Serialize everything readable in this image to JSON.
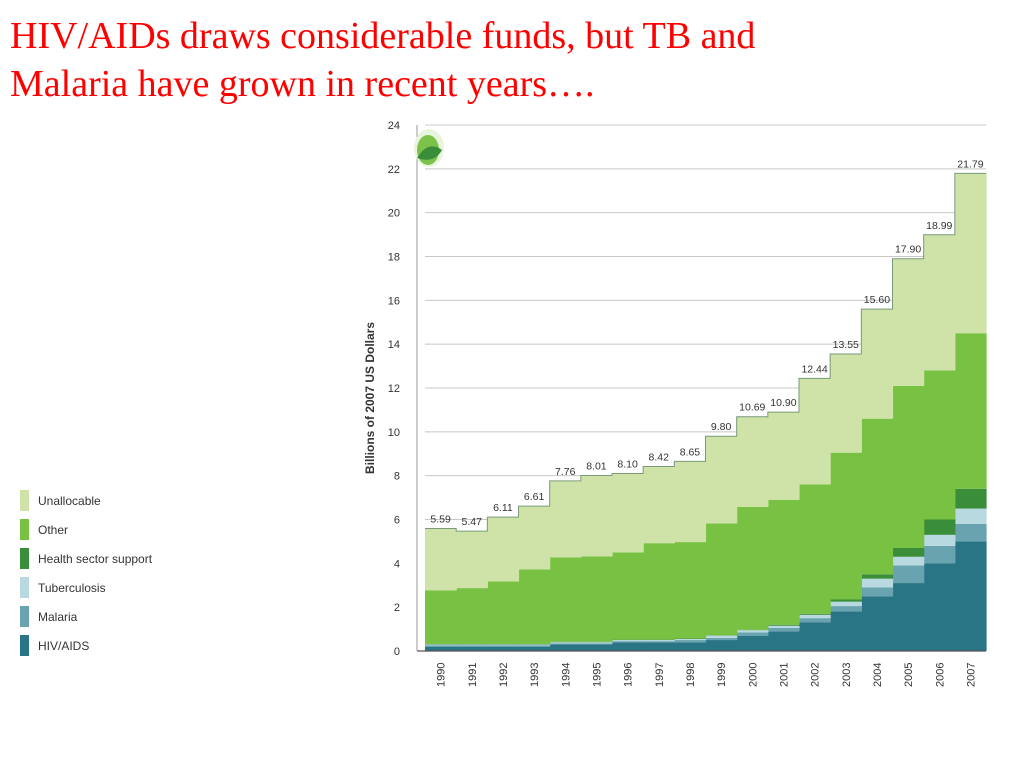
{
  "slide": {
    "title_line1": "HIV/AIDs draws considerable funds, but TB and",
    "title_line2": "Malaria have grown in recent years…."
  },
  "logo": {
    "icon": "leaf-logo-icon",
    "color": "#6ab04c"
  },
  "chart_data": {
    "type": "area",
    "stacked": true,
    "step": true,
    "categories": [
      "1990",
      "1991",
      "1992",
      "1993",
      "1994",
      "1995",
      "1996",
      "1997",
      "1998",
      "1999",
      "2000",
      "2001",
      "2002",
      "2003",
      "2004",
      "2005",
      "2006",
      "2007"
    ],
    "ylabel": "Billions of 2007 US Dollars",
    "xlabel": "",
    "ylim": [
      0,
      24
    ],
    "yticks": [
      0,
      2,
      4,
      6,
      8,
      10,
      12,
      14,
      16,
      18,
      20,
      22,
      24
    ],
    "grid": true,
    "legend_position": "left",
    "series": [
      {
        "name": "HIV/AIDS",
        "color": "#2a7585",
        "values": [
          0.2,
          0.2,
          0.2,
          0.2,
          0.3,
          0.3,
          0.4,
          0.4,
          0.4,
          0.5,
          0.7,
          0.9,
          1.3,
          1.8,
          2.5,
          3.1,
          4.0,
          5.0
        ]
      },
      {
        "name": "Malaria",
        "color": "#6aa3b0",
        "values": [
          0.05,
          0.05,
          0.05,
          0.05,
          0.05,
          0.05,
          0.05,
          0.05,
          0.1,
          0.1,
          0.15,
          0.15,
          0.2,
          0.25,
          0.4,
          0.8,
          0.8,
          0.8
        ]
      },
      {
        "name": "Tuberculosis",
        "color": "#b8d9e0",
        "values": [
          0.05,
          0.05,
          0.05,
          0.05,
          0.05,
          0.05,
          0.05,
          0.05,
          0.05,
          0.1,
          0.1,
          0.1,
          0.15,
          0.2,
          0.4,
          0.4,
          0.5,
          0.7
        ]
      },
      {
        "name": "Health sector support",
        "color": "#3a8e3a",
        "values": [
          0.02,
          0.02,
          0.02,
          0.02,
          0.02,
          0.02,
          0.02,
          0.02,
          0.02,
          0.02,
          0.02,
          0.05,
          0.05,
          0.1,
          0.2,
          0.4,
          0.7,
          0.9
        ]
      },
      {
        "name": "Other",
        "color": "#78c143",
        "values": [
          2.45,
          2.55,
          2.85,
          3.4,
          3.85,
          3.9,
          3.98,
          4.4,
          4.4,
          5.1,
          5.6,
          5.7,
          5.9,
          6.7,
          7.1,
          7.4,
          6.8,
          7.1
        ]
      },
      {
        "name": "Unallocable",
        "color": "#cfe3a8",
        "values": [
          2.82,
          2.6,
          2.94,
          2.89,
          3.49,
          3.69,
          3.6,
          3.5,
          3.68,
          3.98,
          4.12,
          4.0,
          4.84,
          4.5,
          5.0,
          5.8,
          6.19,
          7.29
        ]
      }
    ],
    "totals": [
      5.59,
      5.47,
      6.11,
      6.61,
      7.76,
      8.01,
      8.1,
      8.42,
      8.65,
      9.8,
      10.69,
      10.9,
      12.44,
      13.55,
      15.6,
      17.9,
      18.99,
      21.79
    ],
    "total_labels": [
      "5.59",
      "5.47",
      "6.11",
      "6.61",
      "7.76",
      "8.01",
      "8.10",
      "8.42",
      "8.65",
      "9.80",
      "10.69",
      "10.90",
      "12.44",
      "13.55",
      "15.60",
      "17.90",
      "18.99",
      "21.79"
    ],
    "legend_order": [
      "Unallocable",
      "Other",
      "Health sector support",
      "Tuberculosis",
      "Malaria",
      "HIV/AIDS"
    ]
  }
}
